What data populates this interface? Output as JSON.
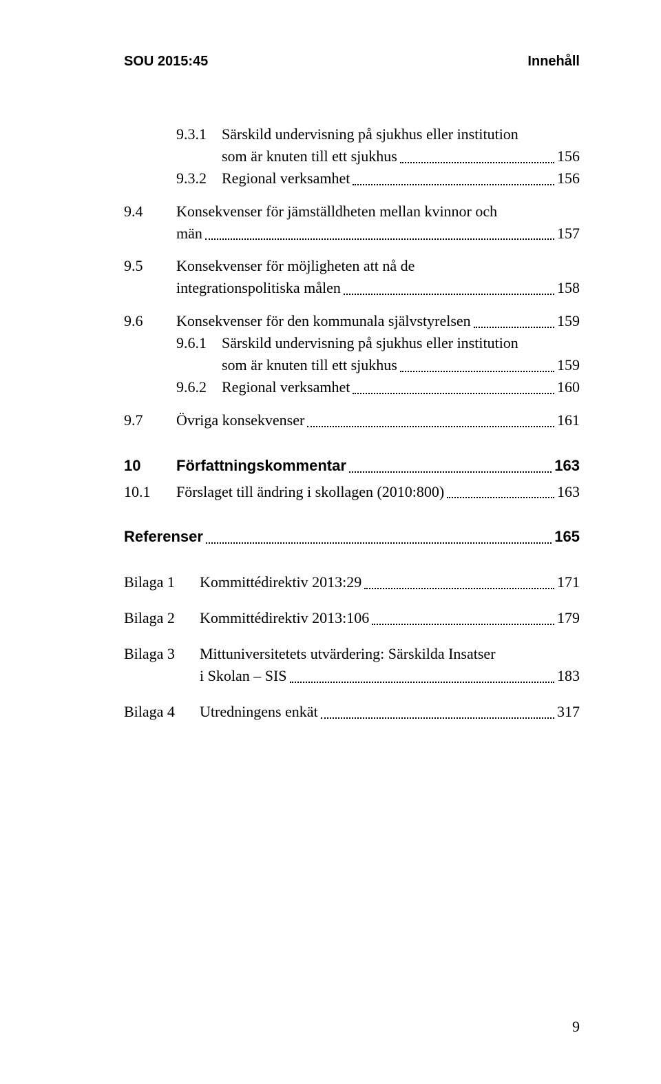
{
  "runningHeader": {
    "left": "SOU 2015:45",
    "right": "Innehåll"
  },
  "entries": [
    {
      "type": "sub2-multiline",
      "num": "9.3.1",
      "line1": "Särskild undervisning på sjukhus eller institution",
      "line2": "som är knuten till ett sjukhus",
      "page": "156",
      "gapBefore": 0
    },
    {
      "type": "sub2",
      "num": "9.3.2",
      "text": "Regional verksamhet",
      "page": "156"
    },
    {
      "type": "sub1-multiline",
      "num": "9.4",
      "line1": "Konsekvenser för jämställdheten mellan kvinnor och",
      "line2": "män",
      "page": "157",
      "gapBefore": 16
    },
    {
      "type": "sub1-multiline",
      "num": "9.5",
      "line1": "Konsekvenser för möjligheten att nå de",
      "line2": "integrationspolitiska målen",
      "page": "158",
      "gapBefore": 16
    },
    {
      "type": "sub1",
      "num": "9.6",
      "text": "Konsekvenser för den kommunala självstyrelsen",
      "page": "159",
      "gapBefore": 16
    },
    {
      "type": "sub2-multiline",
      "num": "9.6.1",
      "line1": "Särskild undervisning på sjukhus eller institution",
      "line2": "som är knuten till ett sjukhus",
      "page": "159"
    },
    {
      "type": "sub2",
      "num": "9.6.2",
      "text": "Regional verksamhet",
      "page": "160"
    },
    {
      "type": "sub1",
      "num": "9.7",
      "text": "Övriga konsekvenser",
      "page": "161",
      "gapBefore": 16
    },
    {
      "type": "chapter",
      "num": "10",
      "text": "Författningskommentar",
      "page": "163",
      "gapBefore": 34
    },
    {
      "type": "sub1",
      "num": "10.1",
      "text": "Förslaget till ändring i skollagen (2010:800)",
      "page": "163",
      "gapBefore": 6
    },
    {
      "type": "chapter-noNum",
      "text": "Referenser",
      "page": "165",
      "gapBefore": 34
    },
    {
      "type": "bilaga",
      "num": "Bilaga 1",
      "text": "Kommittédirektiv 2013:29",
      "page": "171",
      "gapBefore": 34
    },
    {
      "type": "bilaga",
      "num": "Bilaga 2",
      "text": "Kommittédirektiv 2013:106",
      "page": "179",
      "gapBefore": 20
    },
    {
      "type": "bilaga-multiline",
      "num": "Bilaga 3",
      "line1": "Mittuniversitetets utvärdering: Särskilda Insatser",
      "line2": "i Skolan – SIS",
      "page": "183",
      "gapBefore": 20
    },
    {
      "type": "bilaga",
      "num": "Bilaga 4",
      "text": "Utredningens enkät",
      "page": "317",
      "gapBefore": 20
    }
  ],
  "footerPage": "9",
  "colors": {
    "text": "#000000",
    "background": "#ffffff"
  },
  "fonts": {
    "body": "Georgia serif",
    "heading": "Arial sans-serif",
    "bodySize": 22,
    "headerSize": 20
  }
}
